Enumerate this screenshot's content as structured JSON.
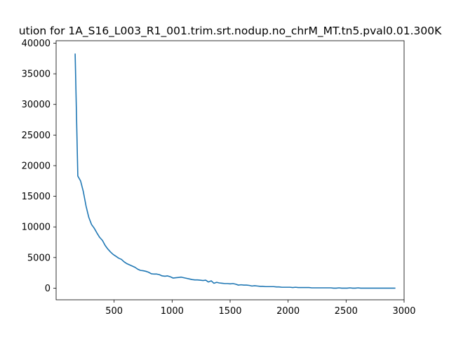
{
  "chart_data": {
    "type": "line",
    "title": "ution for 1A_S16_L003_R1_001.trim.srt.nodup.no_chrM_MT.tn5.pval0.01.300K",
    "xlabel": "",
    "ylabel": "",
    "xlim": [
      0,
      3000
    ],
    "ylim": [
      -1900,
      40400
    ],
    "xticks": [
      500,
      1000,
      1500,
      2000,
      2500,
      3000
    ],
    "yticks": [
      0,
      5000,
      10000,
      15000,
      20000,
      25000,
      30000,
      35000,
      40000
    ],
    "grid": false,
    "line_color": "#1f77b4",
    "series": [
      {
        "x": [
          164,
          187,
          211,
          234,
          258,
          281,
          305,
          328,
          352,
          375,
          399,
          422,
          445,
          469,
          492,
          516,
          539,
          563,
          586,
          610,
          633,
          657,
          680,
          703,
          727,
          750,
          774,
          797,
          821,
          844,
          868,
          891,
          914,
          938,
          961,
          985,
          1008,
          1032,
          1055,
          1079,
          1102,
          1126,
          1149,
          1172,
          1196,
          1219,
          1243,
          1266,
          1290,
          1313,
          1337,
          1360,
          1384,
          1407,
          1430,
          1454,
          1477,
          1501,
          1524,
          1548,
          1571,
          1595,
          1618,
          1641,
          1665,
          1688,
          1712,
          1735,
          1759,
          1782,
          1806,
          1829,
          1853,
          1876,
          1899,
          1923,
          1946,
          1970,
          1993,
          2017,
          2040,
          2064,
          2087,
          2110,
          2134,
          2157,
          2181,
          2204,
          2228,
          2251,
          2275,
          2298,
          2322,
          2345,
          2368,
          2392,
          2415,
          2439,
          2462,
          2486,
          2509,
          2533,
          2556,
          2579,
          2603,
          2626,
          2650,
          2673,
          2697,
          2720,
          2744,
          2767,
          2790,
          2814,
          2837,
          2861,
          2884,
          2908,
          2925
        ],
        "y": [
          38300,
          18300,
          17500,
          15800,
          13400,
          11600,
          10400,
          9800,
          9000,
          8300,
          7800,
          7000,
          6400,
          5900,
          5500,
          5200,
          4900,
          4700,
          4300,
          4000,
          3800,
          3600,
          3400,
          3100,
          2900,
          2850,
          2750,
          2600,
          2350,
          2300,
          2300,
          2200,
          2000,
          1950,
          2000,
          1850,
          1650,
          1700,
          1750,
          1800,
          1700,
          1600,
          1500,
          1400,
          1350,
          1350,
          1300,
          1250,
          1300,
          1000,
          1200,
          800,
          950,
          850,
          800,
          750,
          750,
          700,
          750,
          650,
          500,
          550,
          500,
          500,
          450,
          350,
          400,
          350,
          300,
          300,
          250,
          250,
          250,
          250,
          200,
          200,
          150,
          150,
          150,
          150,
          100,
          150,
          100,
          100,
          100,
          100,
          100,
          50,
          50,
          50,
          50,
          50,
          50,
          50,
          50,
          0,
          0,
          50,
          0,
          0,
          0,
          50,
          0,
          0,
          50,
          0,
          0,
          0,
          0,
          0,
          0,
          0,
          0,
          0,
          0,
          0,
          0,
          0,
          0
        ]
      }
    ]
  }
}
